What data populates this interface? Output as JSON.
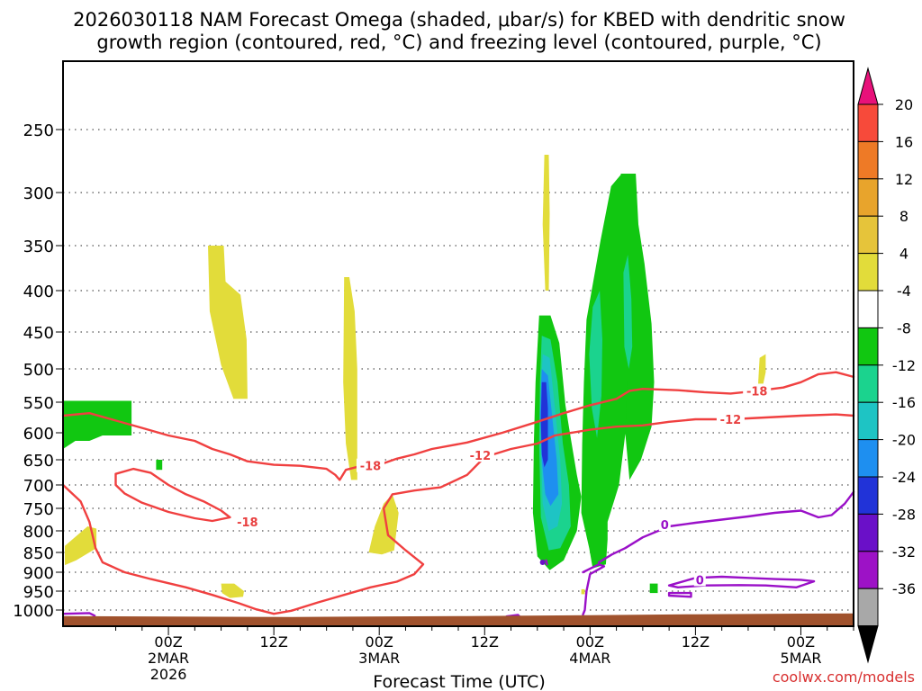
{
  "chart_data": {
    "type": "heatmap",
    "title_line1": "2026030118 NAM Forecast Omega (shaded, μbar/s) for KBED with dendritic snow",
    "title_line2": "growth region (contoured, red, °C) and freezing level (contoured, purple, °C)",
    "xlabel": "Forecast Time (UTC)",
    "watermark": "coolwx.com/models",
    "y_axis": {
      "unit": "hPa",
      "ticks": [
        "250",
        "300",
        "350",
        "400",
        "450",
        "500",
        "550",
        "600",
        "650",
        "700",
        "750",
        "800",
        "850",
        "900",
        "950",
        "1000"
      ],
      "values": [
        250,
        300,
        350,
        400,
        450,
        500,
        550,
        600,
        650,
        700,
        750,
        800,
        850,
        900,
        950,
        1000
      ]
    },
    "x_axis": {
      "range_hours": [
        -6,
        84
      ],
      "ticks": [
        {
          "label": "00Z",
          "sub1": "2MAR",
          "sub2": "2026",
          "hour": 6
        },
        {
          "label": "12Z",
          "sub1": "",
          "sub2": "",
          "hour": 18
        },
        {
          "label": "00Z",
          "sub1": "3MAR",
          "sub2": "",
          "hour": 30
        },
        {
          "label": "12Z",
          "sub1": "",
          "sub2": "",
          "hour": 42
        },
        {
          "label": "00Z",
          "sub1": "4MAR",
          "sub2": "",
          "hour": 54
        },
        {
          "label": "12Z",
          "sub1": "",
          "sub2": "",
          "hour": 66
        },
        {
          "label": "00Z",
          "sub1": "5MAR",
          "sub2": "",
          "hour": 78
        }
      ]
    },
    "colorbar": {
      "labels": [
        "20",
        "16",
        "12",
        "8",
        "4",
        "-4",
        "-8",
        "-12",
        "-16",
        "-20",
        "-24",
        "-28",
        "-32",
        "-36"
      ],
      "colors": [
        "#f74a3a",
        "#ee7a26",
        "#e8a42c",
        "#e6c43a",
        "#e2dc3a",
        "#ffffff",
        "#11c711",
        "#1bd38e",
        "#1ec4c4",
        "#1e8ff0",
        "#2133d8",
        "#6a10c8",
        "#9d12c6",
        "#a8a8a8"
      ],
      "top_color": "#e8117a",
      "bottom_color": "#000000"
    },
    "contour_labels": {
      "dgz": [
        {
          "text": "-18",
          "hour": 15.0,
          "hpa": 780
        },
        {
          "text": "-18",
          "hour": 29.0,
          "hpa": 662
        },
        {
          "text": "-12",
          "hour": 41.5,
          "hpa": 642
        },
        {
          "text": "-12",
          "hour": 70.0,
          "hpa": 578
        },
        {
          "text": "-18",
          "hour": 73.0,
          "hpa": 533
        }
      ],
      "freezing": [
        {
          "text": "0",
          "hour": 62.5,
          "hpa": 786
        },
        {
          "text": "0",
          "hour": 66.5,
          "hpa": 920
        }
      ]
    },
    "colors": {
      "dgz_contour": "#f04040",
      "freezing_contour": "#9a10c8",
      "ground": "#a0522d",
      "label_red": "#e84040"
    }
  }
}
